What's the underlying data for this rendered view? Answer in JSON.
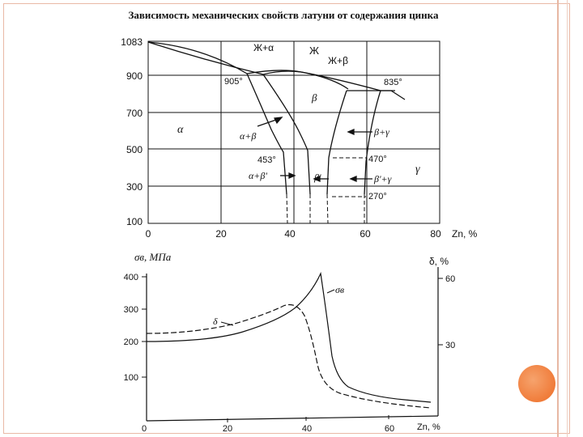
{
  "title": "Зависимость механических свойств латуни от содержания цинка",
  "phase_diagram": {
    "y_ticks": [
      "1083",
      "900",
      "700",
      "500",
      "300",
      "100"
    ],
    "x_ticks": [
      "0",
      "20",
      "40",
      "60",
      "80"
    ],
    "x_unit": "Zn, %",
    "labels": {
      "liquid": "Ж",
      "liquid_alpha": "Ж+α",
      "liquid_beta": "Ж+β",
      "alpha": "α",
      "beta": "β",
      "gamma": "γ",
      "alpha_beta": "α+β",
      "alpha_beta_prime": "α+β'",
      "beta_prime": "β'",
      "beta_gamma": "β+γ",
      "beta_prime_gamma": "β'+γ",
      "t905": "905°",
      "t835": "835°",
      "t453": "453°",
      "t470": "470°",
      "t270": "270°"
    }
  },
  "properties_chart": {
    "left_axis_label": "σв, МПа",
    "right_axis_label": "δ, %",
    "left_ticks": [
      "400",
      "300",
      "200",
      "100",
      "0"
    ],
    "right_ticks": [
      "60",
      "30"
    ],
    "x_ticks": [
      "0",
      "20",
      "40",
      "60"
    ],
    "x_unit": "Zn, %",
    "curve_sigma_label": "σв",
    "curve_delta_label": "δ"
  }
}
